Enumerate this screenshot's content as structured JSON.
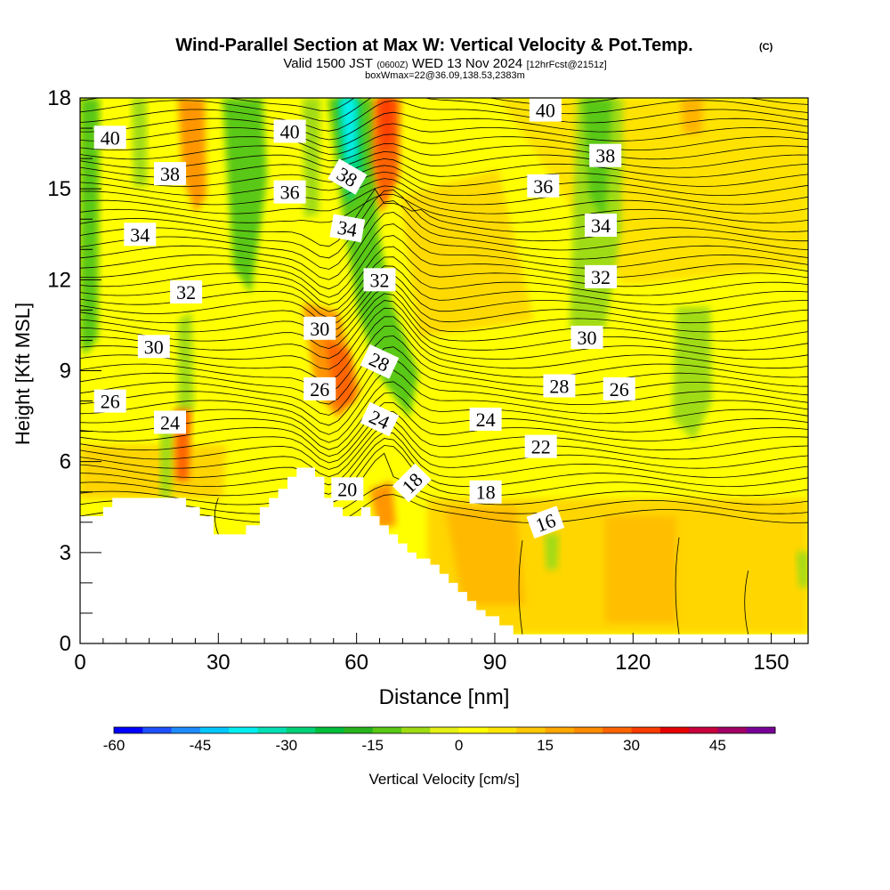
{
  "chart_data": {
    "type": "heatmap",
    "title": "Wind-Parallel Section at Max W: Vertical Velocity & Pot.Temp.",
    "title_mark": "(C)",
    "subtitle_parts": [
      "Valid 1500 JST",
      "(0600Z)",
      "WED 13 Nov 2024",
      "[12hrFcst@2151z]"
    ],
    "subtitle2": "boxWmax=22@36.09,138.53,2383m",
    "xlabel": "Distance [nm]",
    "ylabel": "Height [Kft MSL]",
    "xlim": [
      0,
      158
    ],
    "ylim": [
      0,
      18
    ],
    "xticks": [
      "0",
      "30",
      "60",
      "90",
      "120",
      "150"
    ],
    "yticks": [
      "0",
      "3",
      "6",
      "9",
      "12",
      "15",
      "18"
    ],
    "colorbar": {
      "label": "Vertical Velocity [cm/s]",
      "min": -60,
      "max": 55,
      "step": 5,
      "ticks": [
        "-60",
        "-45",
        "-30",
        "-15",
        "0",
        "15",
        "30",
        "45"
      ],
      "colors": [
        "#0000ff",
        "#1e50ff",
        "#1e8cff",
        "#00c8ff",
        "#00f0f0",
        "#00e0b4",
        "#00d278",
        "#00be3c",
        "#28b41e",
        "#5ac814",
        "#a0dc14",
        "#e6f014",
        "#ffff00",
        "#ffe600",
        "#ffc800",
        "#ffa800",
        "#ff8c00",
        "#ff6400",
        "#ff3c00",
        "#e60000",
        "#c8003c",
        "#a00064",
        "#780096"
      ]
    },
    "colors": {
      "background": "#ffff00",
      "terrain": "#ffffff",
      "contour": "#000000",
      "updraft": "#ff6400",
      "downdraft": "#28b41e"
    },
    "terrain": [
      [
        0,
        4.2
      ],
      [
        5,
        4.2
      ],
      [
        5,
        4.5
      ],
      [
        7,
        4.5
      ],
      [
        7,
        4.8
      ],
      [
        23,
        4.8
      ],
      [
        23,
        4.5
      ],
      [
        26,
        4.5
      ],
      [
        26,
        4.2
      ],
      [
        29,
        4.2
      ],
      [
        29,
        3.6
      ],
      [
        36,
        3.6
      ],
      [
        36,
        3.9
      ],
      [
        39,
        3.9
      ],
      [
        39,
        4.5
      ],
      [
        41,
        4.5
      ],
      [
        41,
        4.8
      ],
      [
        43,
        4.8
      ],
      [
        43,
        5.1
      ],
      [
        45,
        5.1
      ],
      [
        45,
        5.5
      ],
      [
        47,
        5.5
      ],
      [
        47,
        5.8
      ],
      [
        51,
        5.8
      ],
      [
        51,
        5.5
      ],
      [
        53,
        5.5
      ],
      [
        53,
        4.8
      ],
      [
        55,
        4.8
      ],
      [
        55,
        4.5
      ],
      [
        57,
        4.5
      ],
      [
        57,
        4.2
      ],
      [
        61,
        4.2
      ],
      [
        61,
        4.5
      ],
      [
        63,
        4.5
      ],
      [
        63,
        4.2
      ],
      [
        65,
        4.2
      ],
      [
        65,
        3.9
      ],
      [
        67,
        3.9
      ],
      [
        67,
        3.6
      ],
      [
        69,
        3.6
      ],
      [
        69,
        3.3
      ],
      [
        71,
        3.3
      ],
      [
        71,
        3
      ],
      [
        73,
        3
      ],
      [
        73,
        2.8
      ],
      [
        76,
        2.8
      ],
      [
        76,
        2.6
      ],
      [
        78,
        2.6
      ],
      [
        78,
        2.3
      ],
      [
        80,
        2.3
      ],
      [
        80,
        2
      ],
      [
        82,
        2
      ],
      [
        82,
        1.7
      ],
      [
        84,
        1.7
      ],
      [
        84,
        1.4
      ],
      [
        86,
        1.4
      ],
      [
        86,
        1.1
      ],
      [
        88,
        1.1
      ],
      [
        88,
        0.9
      ],
      [
        91,
        0.9
      ],
      [
        91,
        0.6
      ],
      [
        94,
        0.6
      ],
      [
        94,
        0.3
      ],
      [
        158,
        0.3
      ]
    ],
    "contour_labels": [
      {
        "text": "40",
        "x": 6.5,
        "y": 16.7,
        "angle": 0
      },
      {
        "text": "40",
        "x": 45.5,
        "y": 16.9,
        "angle": 0
      },
      {
        "text": "40",
        "x": 101,
        "y": 17.6,
        "angle": 0
      },
      {
        "text": "38",
        "x": 19.5,
        "y": 15.5,
        "angle": 0
      },
      {
        "text": "38",
        "x": 58,
        "y": 15.4,
        "angle": 30
      },
      {
        "text": "38",
        "x": 114,
        "y": 16.1,
        "angle": 0
      },
      {
        "text": "36",
        "x": 45.5,
        "y": 14.9,
        "angle": 0
      },
      {
        "text": "36",
        "x": 100.5,
        "y": 15.1,
        "angle": 0
      },
      {
        "text": "34",
        "x": 13,
        "y": 13.5,
        "angle": 0
      },
      {
        "text": "34",
        "x": 58,
        "y": 13.7,
        "angle": 10
      },
      {
        "text": "34",
        "x": 113,
        "y": 13.8,
        "angle": 0
      },
      {
        "text": "32",
        "x": 23,
        "y": 11.6,
        "angle": 0
      },
      {
        "text": "32",
        "x": 65,
        "y": 12.0,
        "angle": 0
      },
      {
        "text": "32",
        "x": 113,
        "y": 12.1,
        "angle": 0
      },
      {
        "text": "30",
        "x": 16,
        "y": 9.8,
        "angle": 0
      },
      {
        "text": "30",
        "x": 52,
        "y": 10.4,
        "angle": 0
      },
      {
        "text": "30",
        "x": 110,
        "y": 10.1,
        "angle": 0
      },
      {
        "text": "28",
        "x": 65,
        "y": 9.3,
        "angle": 25
      },
      {
        "text": "28",
        "x": 104,
        "y": 8.5,
        "angle": 0
      },
      {
        "text": "26",
        "x": 6.5,
        "y": 8.0,
        "angle": 0
      },
      {
        "text": "26",
        "x": 52,
        "y": 8.4,
        "angle": 0
      },
      {
        "text": "26",
        "x": 117,
        "y": 8.4,
        "angle": 0
      },
      {
        "text": "24",
        "x": 19.5,
        "y": 7.3,
        "angle": 0
      },
      {
        "text": "24",
        "x": 65,
        "y": 7.4,
        "angle": 25
      },
      {
        "text": "24",
        "x": 88,
        "y": 7.4,
        "angle": 0
      },
      {
        "text": "22",
        "x": 100,
        "y": 6.5,
        "angle": 0
      },
      {
        "text": "20",
        "x": 58,
        "y": 5.1,
        "angle": 0
      },
      {
        "text": "18",
        "x": 72,
        "y": 5.3,
        "angle": -45
      },
      {
        "text": "18",
        "x": 88,
        "y": 5.0,
        "angle": 0
      },
      {
        "text": "16",
        "x": 101,
        "y": 4.0,
        "angle": -20
      }
    ]
  }
}
